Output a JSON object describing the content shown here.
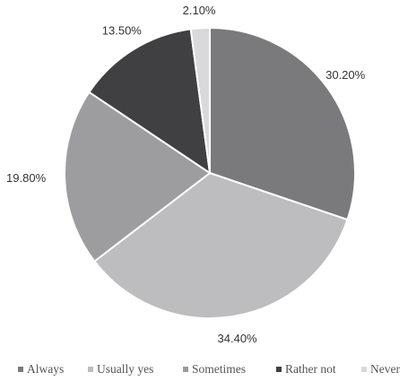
{
  "chart_data": {
    "type": "pie",
    "title": "",
    "slices": [
      {
        "label": "Always",
        "value": 30.2,
        "display": "30.20%",
        "color": "#7a7a7c"
      },
      {
        "label": "Usually yes",
        "value": 34.4,
        "display": "34.40%",
        "color": "#bdbdbf"
      },
      {
        "label": "Sometimes",
        "value": 19.8,
        "display": "19.80%",
        "color": "#9d9d9f"
      },
      {
        "label": "Rather not",
        "value": 13.5,
        "display": "13.50%",
        "color": "#404042"
      },
      {
        "label": "Never",
        "value": 2.1,
        "display": "2.10%",
        "color": "#d9d9db"
      }
    ],
    "legend_position": "bottom",
    "slice_order": "clockwise from top"
  }
}
